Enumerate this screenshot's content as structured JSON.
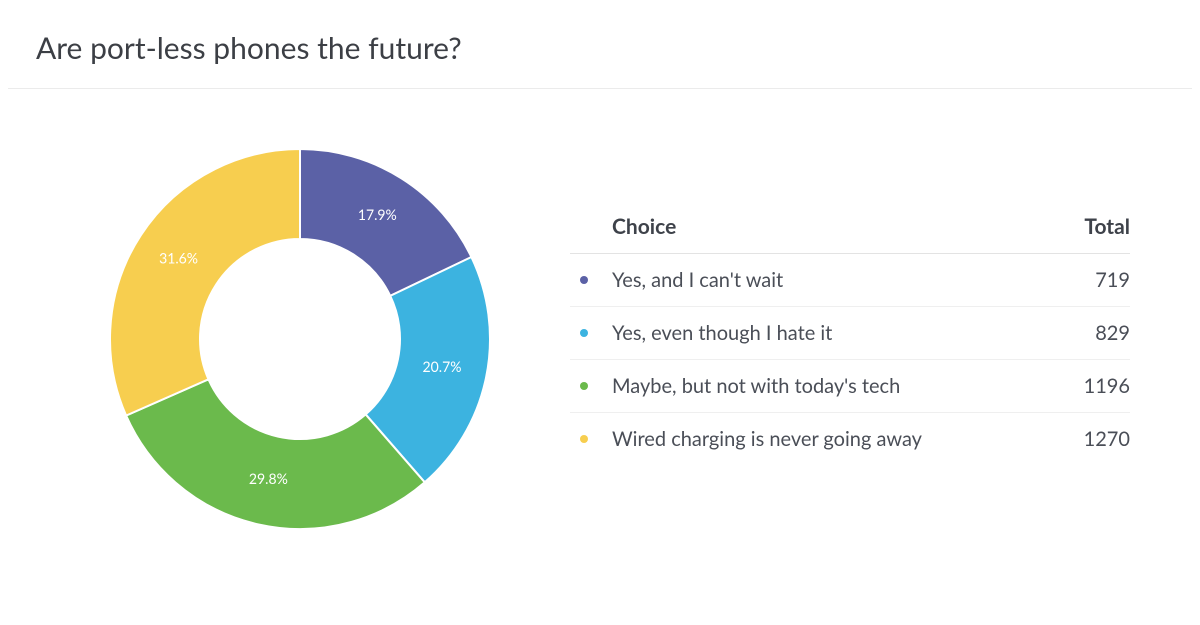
{
  "title": "Are port-less phones the future?",
  "background_color": "#ffffff",
  "divider_color": "#ebebeb",
  "chart": {
    "type": "donut",
    "outer_radius": 190,
    "inner_radius": 100,
    "start_angle_deg": 0,
    "label_fontsize": 14,
    "label_color": "#ffffff",
    "slices": [
      {
        "label": "Yes, and I can't wait",
        "value": 719,
        "percent": 17.9,
        "color": "#5b61a6"
      },
      {
        "label": "Yes, even though I hate it",
        "value": 829,
        "percent": 20.7,
        "color": "#3cb3e0"
      },
      {
        "label": "Maybe, but not with today's tech",
        "value": 1196,
        "percent": 29.8,
        "color": "#6bba4c"
      },
      {
        "label": "Wired charging is never going away",
        "value": 1270,
        "percent": 31.6,
        "color": "#f7ce4f"
      }
    ]
  },
  "table": {
    "header_choice": "Choice",
    "header_total": "Total",
    "header_fontsize": 21,
    "row_fontsize": 20,
    "bullet_radius": 4
  }
}
